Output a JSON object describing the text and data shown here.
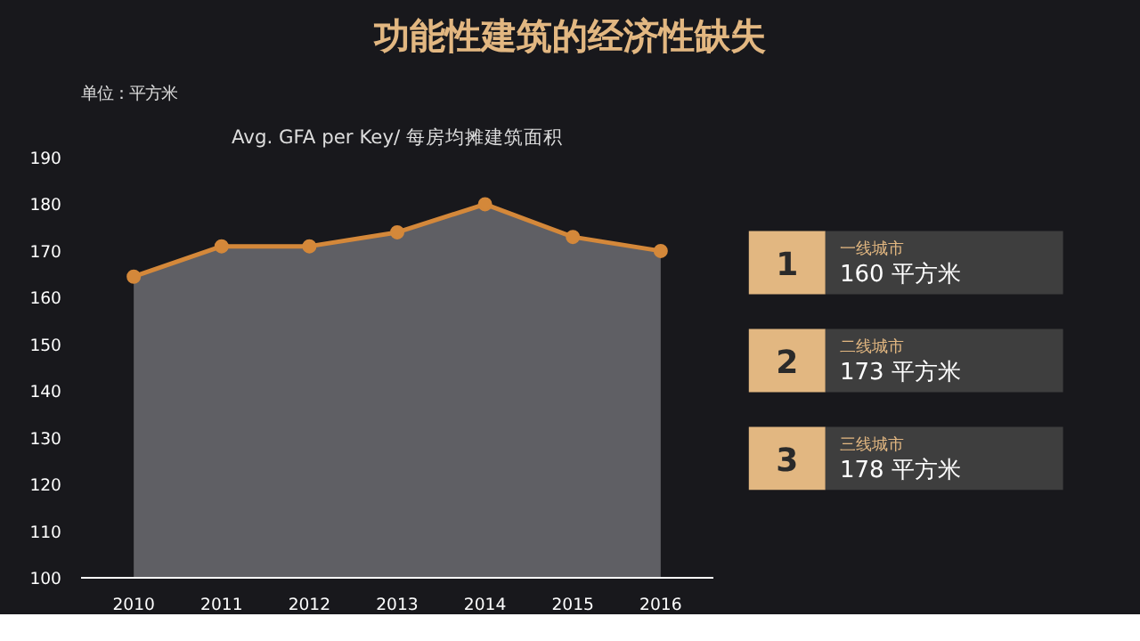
{
  "chart_data": [
    {
      "type": "line",
      "title": "功能性建筑的经济性缺失",
      "ylabel": "单位：平方米",
      "subtitle": "Avg. GFA per Key/ 每房均摊建筑面积",
      "categories": [
        "2010",
        "2011",
        "2012",
        "2013",
        "2014",
        "2015",
        "2016"
      ],
      "series": [
        {
          "type": "area",
          "color": "#d4883a",
          "values": [
            164.5,
            171,
            171,
            174,
            180,
            173,
            170
          ]
        }
      ],
      "ylim": [
        100,
        190
      ],
      "yticks": [
        100,
        110,
        120,
        130,
        140,
        150,
        160,
        170,
        180,
        190
      ],
      "grid": false,
      "marker": "circle",
      "line_style": "solid"
    },
    {
      "type": "other",
      "annotations": [
        "1",
        "一线城市",
        "160 平方米",
        "2",
        "二线城市",
        "173 平方米",
        "3",
        "三线城市",
        "178 平方米"
      ]
    }
  ]
}
